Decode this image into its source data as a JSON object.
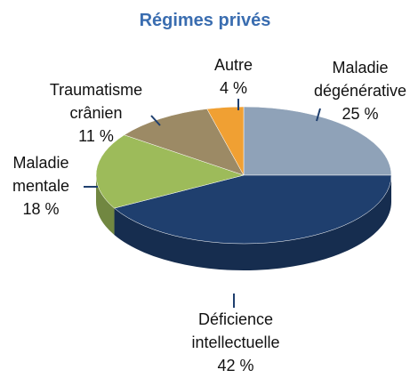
{
  "chart_data": {
    "type": "pie",
    "title": "Régimes privés",
    "categories": [
      "Maladie dégénérative",
      "Déficience intellectuelle",
      "Maladie mentale",
      "Traumatisme crânien",
      "Autre"
    ],
    "values": [
      25,
      42,
      18,
      11,
      4
    ],
    "value_labels": [
      "25 %",
      "42 %",
      "18 %",
      "11 %",
      "4 %"
    ],
    "colors": [
      "#8fa2b8",
      "#1f3f6e",
      "#9dbb5a",
      "#9c8a65",
      "#f0a033"
    ]
  }
}
